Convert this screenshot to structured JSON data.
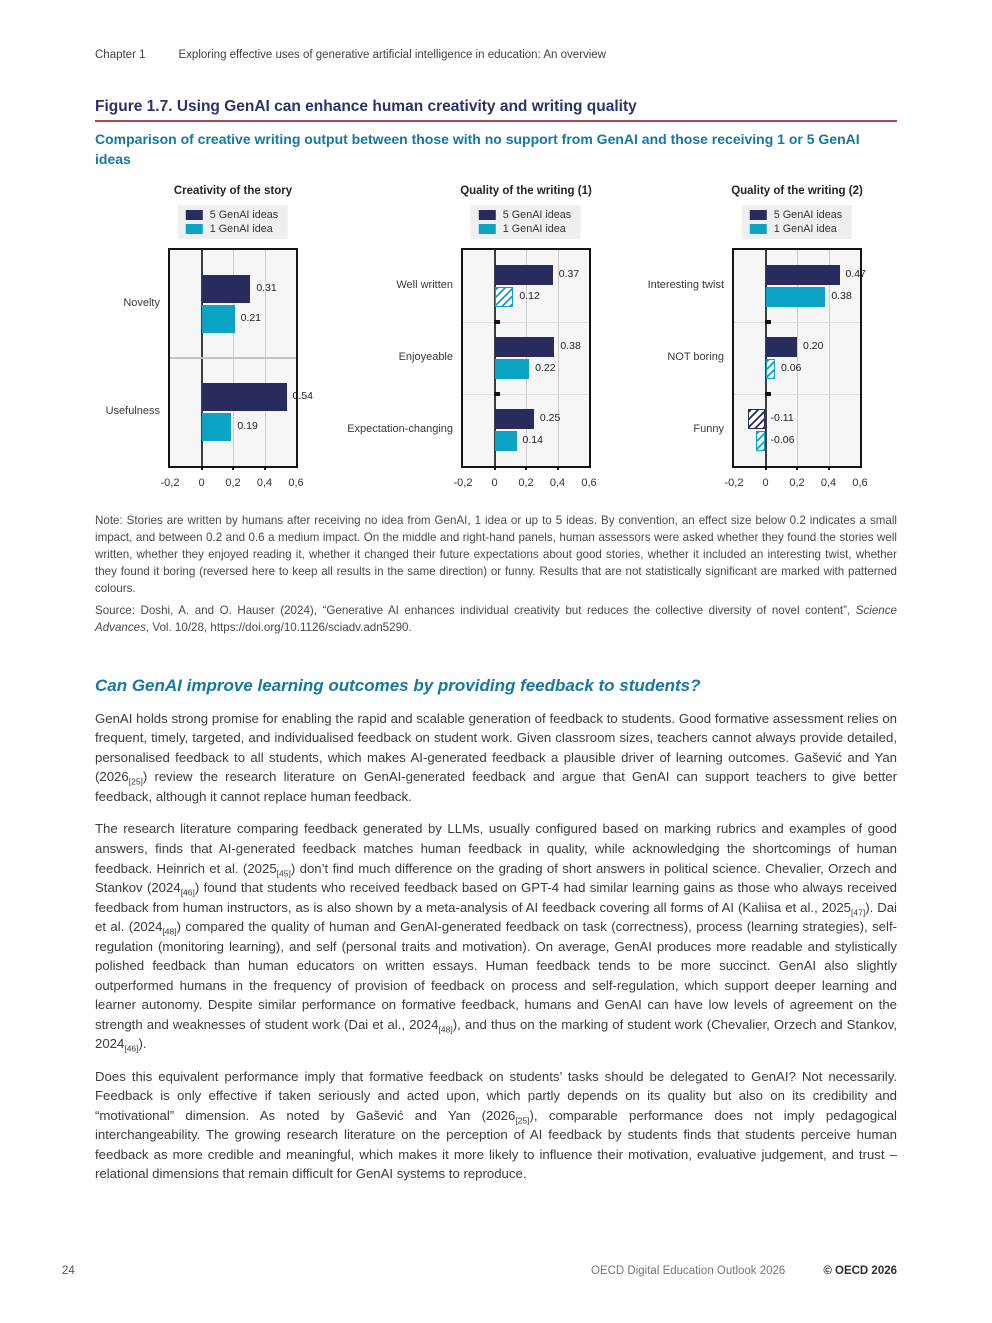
{
  "page": {
    "header": {
      "chapter_label": "Chapter 1",
      "chapter_title": "Exploring effective uses of generative artificial intelligence in education: An overview"
    },
    "figure": {
      "title": "Figure 1.7. Using GenAI can enhance human creativity and writing quality",
      "subtitle": "Comparison of creative writing output between those with no support from GenAI and those receiving 1 or 5 GenAI ideas"
    },
    "note": "Note: Stories are written by humans after receiving no idea from GenAI, 1 idea or up to 5 ideas. By convention, an effect size below 0.2 indicates a small impact, and between 0.2 and 0.6 a medium impact. On the middle and right-hand panels, human assessors were asked whether they found the stories well written, whether they enjoyed reading it, whether it changed their future expectations about good stories, whether it included an interesting twist, whether they found it boring (reversed here to keep all results in the same direction) or funny. Results that are not statistically significant are marked with patterned colours.",
    "source_segments": [
      {
        "text": "Source: Doshi, A. and O. Hauser (2024), “Generative AI enhances individual creativity but reduces the collective diversity of novel content”, "
      },
      {
        "italic": "Science Advances"
      },
      {
        "text": ", Vol. 10/28, https://doi.org/10.1126/sciadv.adn5290."
      }
    ],
    "section": {
      "heading": "Can GenAI improve learning outcomes by providing feedback to students?",
      "paragraphs": [
        [
          {
            "text": "GenAI holds strong promise for enabling the rapid and scalable generation of feedback to students. Good formative assessment relies on frequent, timely, targeted, and individualised feedback on student work. Given classroom sizes, teachers cannot always provide detailed, personalised feedback to all students, which makes AI-generated feedback a plausible driver of learning outcomes. Gašević and Yan (2026"
          },
          {
            "ref": "[25]"
          },
          {
            "text": ") review the research literature on GenAI-generated feedback and argue that GenAI can support teachers to give better feedback, although it cannot replace human feedback."
          }
        ],
        [
          {
            "text": "The research literature comparing feedback generated by LLMs, usually configured based on marking rubrics and examples of good answers, finds that AI-generated feedback matches human feedback in quality, while acknowledging the shortcomings of human feedback. Heinrich et al. (2025"
          },
          {
            "ref": "[45]"
          },
          {
            "text": ") don’t find much difference on the grading of short answers in political science. Chevalier, Orzech and Stankov (2024"
          },
          {
            "ref": "[46]"
          },
          {
            "text": ") found that students who received feedback based on GPT-4 had similar learning gains as those who always received feedback from human instructors, as is also shown by a meta-analysis of AI feedback covering all forms of AI (Kaliisa et al., 2025"
          },
          {
            "ref": "[47]"
          },
          {
            "text": "). Dai et al. (2024"
          },
          {
            "ref": "[48]"
          },
          {
            "text": ") compared the quality of human and GenAI-generated feedback on task (correctness), process (learning strategies), self-regulation (monitoring learning), and self (personal traits and motivation). On average, GenAI produces more readable and stylistically polished feedback than human educators on written essays. Human feedback tends to be more succinct. GenAI also slightly outperformed humans in the frequency of provision of feedback on process and self-regulation, which support deeper learning and learner autonomy. Despite similar performance on formative feedback, humans and GenAI can have low levels of agreement on the strength and weaknesses of student work (Dai et al., 2024"
          },
          {
            "ref": "[48]"
          },
          {
            "text": "), and thus on the marking of student work (Chevalier, Orzech and Stankov, 2024"
          },
          {
            "ref": "[46]"
          },
          {
            "text": ")."
          }
        ],
        [
          {
            "text": "Does this equivalent performance imply that formative feedback on students’ tasks should be delegated to GenAI? Not necessarily. Feedback is only effective if taken seriously and acted upon, which partly depends on its quality but also on its credibility and “motivational” dimension. As noted by Gašević and Yan (2026"
          },
          {
            "ref": "[25]"
          },
          {
            "text": "), comparable performance does not imply pedagogical interchangeability. The growing research literature on the perception of AI feedback by students finds that students perceive human feedback as more credible and meaningful, which makes it more likely to influence their motivation, evaluative judgement, and trust – relational dimensions that remain difficult for GenAI systems to reproduce."
          }
        ]
      ]
    },
    "footer": {
      "page_number": "24",
      "book_title": "OECD Digital Education Outlook 2026",
      "copyright": "© OECD 2026"
    }
  },
  "colors": {
    "series_5_ideas": "#292a5e",
    "series_1_idea": "#0da3c4",
    "figure_title": "#2f3069",
    "figure_rule": "#b8434e",
    "subtitle_teal": "#15799f",
    "section_heading": "#16789f",
    "plot_background": "#f6f6f7",
    "plot_frame": "#141414"
  },
  "chart_data": [
    {
      "type": "bar",
      "title": "Creativity of the story",
      "categories": [
        "Novelty",
        "Usefulness"
      ],
      "series": [
        {
          "name": "5 GenAI ideas",
          "color": "#292a5e",
          "values": [
            0.31,
            0.54
          ],
          "hatched": [
            false,
            false
          ]
        },
        {
          "name": "1 GenAI idea",
          "color": "#0da3c4",
          "values": [
            0.21,
            0.19
          ],
          "hatched": [
            false,
            false
          ]
        }
      ],
      "xlabel": "",
      "ylabel": "",
      "xlim": [
        -0.2,
        0.6
      ],
      "xtick_values": [
        -0.2,
        0,
        0.2,
        0.4,
        0.6
      ],
      "xtick_labels": [
        "-0,2",
        "0",
        "0,2",
        "0,4",
        "0,6"
      ],
      "legend_position": "top",
      "grid": true
    },
    {
      "type": "bar",
      "title": "Quality of the writing (1)",
      "categories": [
        "Well written",
        "Enjoyeable",
        "Expectation-changing"
      ],
      "series": [
        {
          "name": "5 GenAI ideas",
          "color": "#292a5e",
          "values": [
            0.37,
            0.38,
            0.25
          ],
          "hatched": [
            false,
            false,
            false
          ]
        },
        {
          "name": "1 GenAI idea",
          "color": "#0da3c4",
          "values": [
            0.12,
            0.22,
            0.14
          ],
          "hatched": [
            true,
            false,
            false
          ]
        }
      ],
      "xlabel": "",
      "ylabel": "",
      "xlim": [
        -0.2,
        0.6
      ],
      "xtick_values": [
        -0.2,
        0,
        0.2,
        0.4,
        0.6
      ],
      "xtick_labels": [
        "-0,2",
        "0",
        "0,2",
        "0,4",
        "0,6"
      ],
      "legend_position": "top",
      "grid": true
    },
    {
      "type": "bar",
      "title": "Quality of the writing (2)",
      "categories": [
        "Interesting twist",
        "NOT boring",
        "Funny"
      ],
      "series": [
        {
          "name": "5 GenAI ideas",
          "color": "#292a5e",
          "values": [
            0.47,
            0.2,
            -0.11
          ],
          "hatched": [
            false,
            false,
            true
          ]
        },
        {
          "name": "1 GenAI idea",
          "color": "#0da3c4",
          "values": [
            0.38,
            0.06,
            -0.06
          ],
          "hatched": [
            false,
            true,
            true
          ]
        }
      ],
      "xlabel": "",
      "ylabel": "",
      "xlim": [
        -0.2,
        0.6
      ],
      "xtick_values": [
        -0.2,
        0,
        0.2,
        0.4,
        0.6
      ],
      "xtick_labels": [
        "-0,2",
        "0",
        "0,2",
        "0,4",
        "0,6"
      ],
      "legend_position": "top",
      "grid": true
    }
  ]
}
